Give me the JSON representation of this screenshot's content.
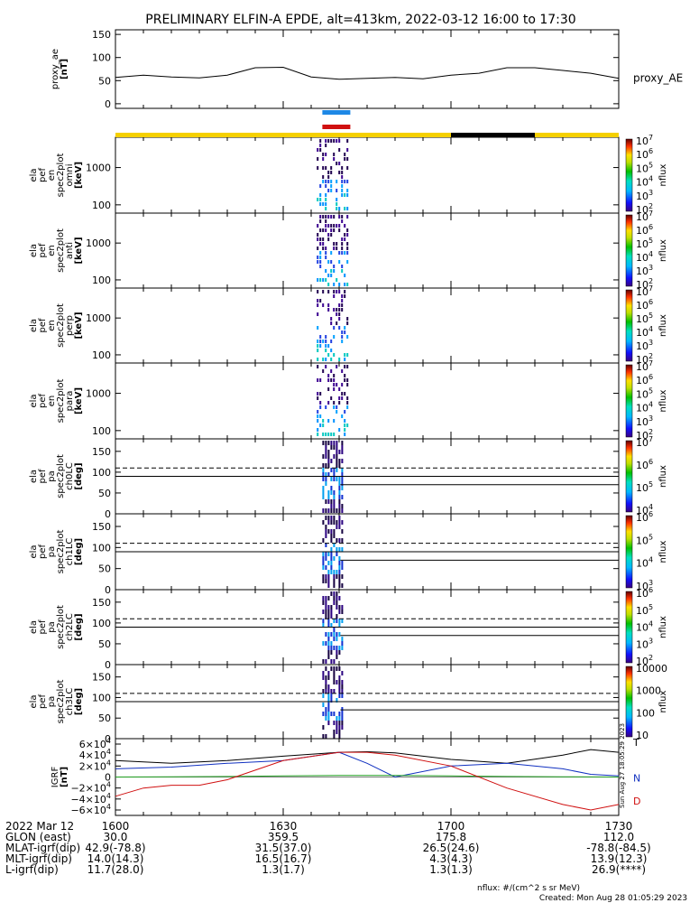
{
  "title": "PRELIMINARY ELFIN-A EPDE, alt=413km, 2022-03-12 16:00 to 17:30",
  "chart_data": [
    {
      "type": "line",
      "panel": "proxy_ae",
      "ylabel_lines": [
        "proxy_ae",
        "[nT]"
      ],
      "yticks": [
        "150",
        "100",
        "50",
        "0"
      ],
      "ylim": [
        -10,
        160
      ],
      "xlim": [
        "16:00",
        "17:30"
      ],
      "series": [
        {
          "name": "proxy_AE",
          "x": [
            "16:00",
            "16:05",
            "16:10",
            "16:15",
            "16:20",
            "16:25",
            "16:30",
            "16:35",
            "16:40",
            "16:45",
            "16:50",
            "16:55",
            "17:00",
            "17:05",
            "17:10",
            "17:15",
            "17:20",
            "17:25",
            "17:30"
          ],
          "values": [
            57,
            62,
            58,
            56,
            62,
            78,
            79,
            58,
            53,
            55,
            57,
            54,
            62,
            66,
            78,
            78,
            72,
            66,
            55
          ]
        }
      ]
    },
    {
      "type": "heatmap",
      "panel": "ela_pef_en_spec2plot_omni",
      "ylabel_lines": [
        "ela",
        "pef",
        "en",
        "spec2plot",
        "omni",
        "[keV]"
      ],
      "yticks": [
        "1000",
        "100"
      ],
      "yscale": "log",
      "ylim": [
        60,
        6500
      ],
      "colorbar": {
        "label": "nflux",
        "ticks": [
          "10^2",
          "10^3",
          "10^4",
          "10^5",
          "10^6",
          "10^7"
        ]
      },
      "active_interval": [
        "16:36",
        "16:42"
      ]
    },
    {
      "type": "heatmap",
      "panel": "ela_pef_en_spec2plot_anti",
      "ylabel_lines": [
        "ela",
        "pef",
        "en",
        "spec2plot",
        "anti",
        "[keV]"
      ],
      "yticks": [
        "1000",
        "100"
      ],
      "yscale": "log",
      "ylim": [
        60,
        6500
      ],
      "colorbar": {
        "label": "nflux",
        "ticks": [
          "10^2",
          "10^3",
          "10^4",
          "10^5",
          "10^6",
          "10^7"
        ]
      },
      "active_interval": [
        "16:36",
        "16:42"
      ]
    },
    {
      "type": "heatmap",
      "panel": "ela_pef_en_spec2plot_perp",
      "ylabel_lines": [
        "ela",
        "pef",
        "en",
        "spec2plot",
        "perp",
        "[keV]"
      ],
      "yticks": [
        "1000",
        "100"
      ],
      "yscale": "log",
      "ylim": [
        60,
        6500
      ],
      "colorbar": {
        "label": "nflux",
        "ticks": [
          "10^2",
          "10^3",
          "10^4",
          "10^5",
          "10^6",
          "10^7"
        ]
      },
      "active_interval": [
        "16:36",
        "16:42"
      ]
    },
    {
      "type": "heatmap",
      "panel": "ela_pef_en_spec2plot_para",
      "ylabel_lines": [
        "ela",
        "pef",
        "en",
        "spec2plot",
        "para",
        "[keV]"
      ],
      "yticks": [
        "1000",
        "100"
      ],
      "yscale": "log",
      "ylim": [
        60,
        6500
      ],
      "colorbar": {
        "label": "nflux",
        "ticks": [
          "10^2",
          "10^3",
          "10^4",
          "10^5",
          "10^6",
          "10^7"
        ]
      },
      "active_interval": [
        "16:36",
        "16:42"
      ]
    },
    {
      "type": "heatmap",
      "panel": "ela_pef_pa_spec2plot_ch0LC",
      "ylabel_lines": [
        "ela",
        "pef",
        "pa",
        "spec2plot",
        "ch0LC",
        "[deg]"
      ],
      "yticks": [
        "150",
        "100",
        "50",
        "0"
      ],
      "ylim": [
        0,
        180
      ],
      "colorbar": {
        "label": "nflux",
        "ticks": [
          "10^4",
          "10^5",
          "10^6",
          "10^7"
        ]
      },
      "active_interval": [
        "16:37",
        "16:41"
      ]
    },
    {
      "type": "heatmap",
      "panel": "ela_pef_pa_spec2plot_ch1LC",
      "ylabel_lines": [
        "ela",
        "pef",
        "pa",
        "spec2plot",
        "ch1LC",
        "[deg]"
      ],
      "yticks": [
        "150",
        "100",
        "50",
        "0"
      ],
      "ylim": [
        0,
        180
      ],
      "colorbar": {
        "label": "nflux",
        "ticks": [
          "10^3",
          "10^4",
          "10^5",
          "10^6"
        ]
      },
      "active_interval": [
        "16:37",
        "16:41"
      ]
    },
    {
      "type": "heatmap",
      "panel": "ela_pef_pa_spec2plot_ch2LC",
      "ylabel_lines": [
        "ela",
        "pef",
        "pa",
        "spec2plot",
        "ch2LC",
        "[deg]"
      ],
      "yticks": [
        "150",
        "100",
        "50",
        "0"
      ],
      "ylim": [
        0,
        180
      ],
      "colorbar": {
        "label": "nflux",
        "ticks": [
          "10^2",
          "10^3",
          "10^4",
          "10^5",
          "10^6"
        ]
      },
      "active_interval": [
        "16:37",
        "16:41"
      ]
    },
    {
      "type": "heatmap",
      "panel": "ela_pef_pa_spec2plot_ch3LC",
      "ylabel_lines": [
        "ela",
        "pef",
        "pa",
        "spec2plot",
        "ch3LC",
        "[deg]"
      ],
      "yticks": [
        "150",
        "100",
        "50",
        "0"
      ],
      "ylim": [
        0,
        180
      ],
      "colorbar": {
        "label": "nflux",
        "ticks": [
          "10",
          "100",
          "1000",
          "10000"
        ]
      },
      "active_interval": [
        "16:37",
        "16:41"
      ]
    },
    {
      "type": "line",
      "panel": "IGRF",
      "ylabel_lines": [
        "IGRF",
        "[nT]"
      ],
      "yticks": [
        "6×10^4",
        "4×10^4",
        "2×10^4",
        "0",
        "−2×10^4",
        "−4×10^4",
        "−6×10^4"
      ],
      "ylim": [
        -65000,
        65000
      ],
      "series": [
        {
          "name": "T",
          "x": [
            "16:00",
            "16:10",
            "16:20",
            "16:30",
            "16:40",
            "16:45",
            "16:50",
            "17:00",
            "17:10",
            "17:20",
            "17:25",
            "17:30"
          ],
          "values": [
            30000,
            25000,
            30000,
            38000,
            45000,
            46000,
            44000,
            32000,
            25000,
            40000,
            50000,
            45000
          ]
        },
        {
          "name": "N",
          "x": [
            "16:00",
            "16:10",
            "16:20",
            "16:30",
            "16:40",
            "16:45",
            "16:50",
            "17:00",
            "17:10",
            "17:20",
            "17:25",
            "17:30"
          ],
          "values": [
            15000,
            18000,
            25000,
            30000,
            45000,
            25000,
            0,
            20000,
            25000,
            15000,
            5000,
            2000
          ]
        },
        {
          "name": "E",
          "x": [
            "16:00",
            "16:10",
            "16:20",
            "16:30",
            "16:40",
            "16:50",
            "17:00",
            "17:10",
            "17:20",
            "17:30"
          ],
          "values": [
            0,
            500,
            1000,
            2000,
            3000,
            3000,
            2000,
            1000,
            500,
            0
          ]
        },
        {
          "name": "D",
          "x": [
            "16:00",
            "16:05",
            "16:10",
            "16:15",
            "16:20",
            "16:30",
            "16:40",
            "16:45",
            "16:50",
            "17:00",
            "17:10",
            "17:20",
            "17:25",
            "17:30"
          ],
          "values": [
            -35000,
            -20000,
            -15000,
            -15000,
            -5000,
            30000,
            45000,
            45000,
            40000,
            20000,
            -20000,
            -50000,
            -60000,
            -50000
          ]
        }
      ],
      "legend_labels": [
        "T",
        "N",
        "D"
      ]
    }
  ],
  "orbit_bars": {
    "blue_label": "",
    "red_label": "",
    "science_zone": [
      "16:37",
      "16:42"
    ]
  },
  "footer": {
    "rows": [
      {
        "label": "2022 Mar 12",
        "values": [
          "1600",
          "1630",
          "1700",
          "1730"
        ]
      },
      {
        "label": "GLON (east)",
        "values": [
          "30.0",
          "359.5",
          "175.8",
          "112.0"
        ]
      },
      {
        "label": "MLAT-igrf(dip)",
        "values": [
          "42.9(-78.8)",
          "31.5(37.0)",
          "26.5(24.6)",
          "-78.8(-84.5)"
        ]
      },
      {
        "label": "MLT-igrf(dip)",
        "values": [
          "14.0(14.3)",
          "16.5(16.7)",
          "4.3(4.3)",
          "13.9(12.3)"
        ]
      },
      {
        "label": "L-igrf(dip)",
        "values": [
          "11.7(28.0)",
          "1.3(1.7)",
          "1.3(1.3)",
          "26.9(****)"
        ]
      }
    ],
    "units_note": "nflux: #/(cm^2 s sr MeV)",
    "created": "Created: Mon Aug 28 01:05:29 2023",
    "side_stamp": "Sun Aug 27 18:05:29 2023"
  },
  "colors": {
    "ae_line": "#000000",
    "yellow_bar": "#f5d000",
    "black_bar": "#000000",
    "blue_bar": "#1e88e5",
    "red_bar": "#d01010",
    "igrf_t": "#000000",
    "igrf_n": "#1030c0",
    "igrf_e": "#20a020",
    "igrf_d": "#d01010"
  }
}
